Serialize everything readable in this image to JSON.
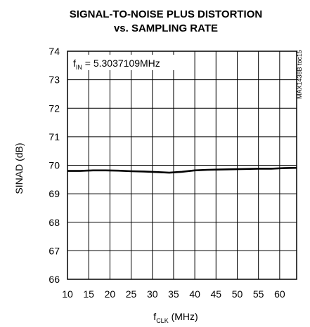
{
  "chart_data": {
    "type": "line",
    "title": "SIGNAL-TO-NOISE PLUS DISTORTION",
    "subtitle": "vs. SAMPLING RATE",
    "ylabel": "SINAD (dB)",
    "xlabel_main": "f",
    "xlabel_sub": "CLK",
    "xlabel_unit": " (MHz)",
    "annotation_main": "f",
    "annotation_sub": "IN",
    "annotation_rest": " = 5.3037109MHz",
    "side_note": "MAX1438B toc15",
    "xlim": [
      10,
      64
    ],
    "ylim": [
      66,
      74
    ],
    "x_ticks": [
      10,
      15,
      20,
      25,
      30,
      35,
      40,
      45,
      50,
      55,
      60
    ],
    "y_ticks": [
      66,
      67,
      68,
      69,
      70,
      71,
      72,
      73,
      74
    ],
    "grid": true,
    "series": [
      {
        "x": [
          10,
          13,
          16,
          19,
          22,
          25,
          28,
          31,
          34,
          37,
          40,
          43,
          46,
          49,
          52,
          55,
          58,
          61,
          64
        ],
        "y": [
          69.8,
          69.8,
          69.82,
          69.82,
          69.81,
          69.79,
          69.78,
          69.76,
          69.74,
          69.77,
          69.82,
          69.84,
          69.85,
          69.86,
          69.87,
          69.88,
          69.88,
          69.9,
          69.91
        ]
      }
    ]
  }
}
